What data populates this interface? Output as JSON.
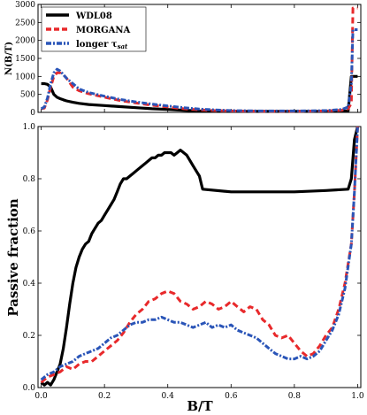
{
  "chart_data": [
    {
      "type": "line",
      "panel": "top",
      "ylabel": "N(B/T)",
      "xlabel": "",
      "xlim": [
        -0.01,
        1.01
      ],
      "ylim": [
        0,
        3000
      ],
      "yticks": [
        0,
        500,
        1000,
        1500,
        2000,
        2500,
        3000
      ],
      "ytick_labels": [
        "0",
        "500",
        "1000",
        "1500",
        "2000",
        "2500",
        "3000"
      ],
      "legend": {
        "placement": "top-left"
      },
      "series": [
        {
          "name": "WDL08",
          "color": "#000000",
          "style": "solid",
          "x": [
            0.0,
            0.01,
            0.02,
            0.03,
            0.04,
            0.05,
            0.06,
            0.07,
            0.08,
            0.1,
            0.12,
            0.15,
            0.2,
            0.25,
            0.3,
            0.35,
            0.4,
            0.45,
            0.5,
            0.6,
            0.7,
            0.8,
            0.9,
            0.97,
            0.98,
            0.99,
            1.0
          ],
          "y": [
            800,
            800,
            780,
            700,
            500,
            420,
            380,
            350,
            320,
            280,
            250,
            220,
            190,
            160,
            130,
            100,
            80,
            60,
            40,
            30,
            30,
            30,
            30,
            40,
            1000,
            1000,
            1000
          ]
        },
        {
          "name": "MORGANA",
          "color": "#e8292b",
          "style": "dashed",
          "x": [
            0.0,
            0.01,
            0.02,
            0.03,
            0.04,
            0.05,
            0.06,
            0.07,
            0.08,
            0.1,
            0.12,
            0.15,
            0.2,
            0.25,
            0.3,
            0.35,
            0.4,
            0.45,
            0.5,
            0.55,
            0.6,
            0.7,
            0.8,
            0.9,
            0.95,
            0.97,
            0.98,
            0.985,
            0.99,
            1.0
          ],
          "y": [
            100,
            120,
            350,
            700,
            1000,
            1100,
            1100,
            1050,
            950,
            700,
            600,
            520,
            420,
            330,
            260,
            200,
            150,
            100,
            70,
            50,
            40,
            30,
            30,
            40,
            60,
            100,
            250,
            2900,
            2900,
            2900
          ]
        },
        {
          "name": "longer τsat",
          "color": "#2a55b8",
          "style": "dashdot",
          "x": [
            0.0,
            0.01,
            0.02,
            0.03,
            0.04,
            0.05,
            0.06,
            0.07,
            0.08,
            0.1,
            0.12,
            0.15,
            0.2,
            0.25,
            0.3,
            0.35,
            0.4,
            0.45,
            0.5,
            0.55,
            0.6,
            0.7,
            0.8,
            0.9,
            0.95,
            0.97,
            0.98,
            0.985,
            0.99,
            1.0
          ],
          "y": [
            100,
            150,
            400,
            800,
            1100,
            1200,
            1150,
            1050,
            950,
            800,
            650,
            550,
            450,
            360,
            290,
            230,
            180,
            130,
            90,
            70,
            50,
            40,
            40,
            50,
            80,
            150,
            800,
            2300,
            2300,
            2300
          ]
        }
      ]
    },
    {
      "type": "line",
      "panel": "bottom",
      "xlabel": "B/T",
      "ylabel": "Passive fraction",
      "xlim": [
        -0.01,
        1.01
      ],
      "ylim": [
        0,
        1.0
      ],
      "xticks": [
        0.0,
        0.2,
        0.4,
        0.6,
        0.8,
        1.0
      ],
      "xtick_labels": [
        "0.0",
        "0.2",
        "0.4",
        "0.6",
        "0.8",
        "1.0"
      ],
      "yticks": [
        0.0,
        0.2,
        0.4,
        0.6,
        0.8,
        1.0
      ],
      "ytick_labels": [
        "0.0",
        "0.2",
        "0.4",
        "0.6",
        "0.8",
        "1.0"
      ],
      "series": [
        {
          "name": "WDL08",
          "color": "#000000",
          "style": "solid",
          "x": [
            0.0,
            0.01,
            0.02,
            0.03,
            0.04,
            0.05,
            0.06,
            0.07,
            0.08,
            0.09,
            0.1,
            0.11,
            0.12,
            0.13,
            0.14,
            0.15,
            0.16,
            0.17,
            0.18,
            0.19,
            0.2,
            0.21,
            0.22,
            0.23,
            0.24,
            0.25,
            0.26,
            0.27,
            0.28,
            0.29,
            0.3,
            0.31,
            0.32,
            0.33,
            0.34,
            0.35,
            0.36,
            0.37,
            0.38,
            0.39,
            0.4,
            0.41,
            0.42,
            0.43,
            0.44,
            0.45,
            0.46,
            0.47,
            0.48,
            0.49,
            0.5,
            0.51,
            0.6,
            0.7,
            0.8,
            0.9,
            0.97,
            0.98,
            0.99,
            1.0
          ],
          "y": [
            0.02,
            0.01,
            0.02,
            0.01,
            0.03,
            0.06,
            0.09,
            0.15,
            0.23,
            0.32,
            0.4,
            0.46,
            0.5,
            0.53,
            0.55,
            0.56,
            0.59,
            0.61,
            0.63,
            0.64,
            0.66,
            0.68,
            0.7,
            0.72,
            0.75,
            0.78,
            0.8,
            0.8,
            0.81,
            0.82,
            0.83,
            0.84,
            0.85,
            0.86,
            0.87,
            0.88,
            0.88,
            0.89,
            0.89,
            0.9,
            0.9,
            0.9,
            0.89,
            0.9,
            0.91,
            0.9,
            0.89,
            0.87,
            0.85,
            0.83,
            0.81,
            0.76,
            0.75,
            0.75,
            0.75,
            0.755,
            0.76,
            0.8,
            0.95,
            1.0
          ]
        },
        {
          "name": "MORGANA",
          "color": "#e8292b",
          "style": "dashed",
          "x": [
            0.0,
            0.02,
            0.04,
            0.06,
            0.08,
            0.1,
            0.12,
            0.14,
            0.16,
            0.18,
            0.2,
            0.22,
            0.24,
            0.26,
            0.28,
            0.3,
            0.32,
            0.34,
            0.36,
            0.38,
            0.4,
            0.42,
            0.44,
            0.46,
            0.48,
            0.5,
            0.52,
            0.54,
            0.56,
            0.58,
            0.6,
            0.62,
            0.64,
            0.66,
            0.68,
            0.7,
            0.72,
            0.74,
            0.76,
            0.78,
            0.8,
            0.82,
            0.84,
            0.86,
            0.88,
            0.9,
            0.92,
            0.94,
            0.96,
            0.98,
            0.99,
            1.0
          ],
          "y": [
            0.02,
            0.04,
            0.05,
            0.06,
            0.08,
            0.07,
            0.09,
            0.1,
            0.1,
            0.12,
            0.14,
            0.16,
            0.18,
            0.21,
            0.25,
            0.28,
            0.3,
            0.33,
            0.34,
            0.36,
            0.37,
            0.36,
            0.33,
            0.32,
            0.3,
            0.31,
            0.33,
            0.32,
            0.3,
            0.31,
            0.33,
            0.31,
            0.29,
            0.31,
            0.3,
            0.26,
            0.24,
            0.2,
            0.19,
            0.2,
            0.17,
            0.14,
            0.12,
            0.13,
            0.16,
            0.2,
            0.23,
            0.3,
            0.4,
            0.55,
            0.75,
            1.0
          ]
        },
        {
          "name": "longer τsat",
          "color": "#2a55b8",
          "style": "dashdot",
          "x": [
            0.0,
            0.02,
            0.04,
            0.06,
            0.08,
            0.1,
            0.12,
            0.14,
            0.16,
            0.18,
            0.2,
            0.22,
            0.24,
            0.26,
            0.28,
            0.3,
            0.32,
            0.34,
            0.36,
            0.38,
            0.4,
            0.42,
            0.44,
            0.46,
            0.48,
            0.5,
            0.52,
            0.54,
            0.56,
            0.58,
            0.6,
            0.62,
            0.64,
            0.66,
            0.68,
            0.7,
            0.72,
            0.74,
            0.76,
            0.78,
            0.8,
            0.82,
            0.84,
            0.86,
            0.88,
            0.9,
            0.92,
            0.94,
            0.96,
            0.98,
            0.99,
            1.0
          ],
          "y": [
            0.03,
            0.05,
            0.06,
            0.08,
            0.09,
            0.1,
            0.12,
            0.13,
            0.14,
            0.15,
            0.17,
            0.19,
            0.2,
            0.22,
            0.24,
            0.25,
            0.25,
            0.26,
            0.26,
            0.27,
            0.26,
            0.25,
            0.25,
            0.24,
            0.23,
            0.24,
            0.25,
            0.23,
            0.24,
            0.23,
            0.24,
            0.22,
            0.21,
            0.2,
            0.19,
            0.17,
            0.15,
            0.13,
            0.12,
            0.11,
            0.11,
            0.12,
            0.11,
            0.12,
            0.14,
            0.18,
            0.22,
            0.28,
            0.38,
            0.55,
            0.75,
            1.0
          ]
        }
      ]
    }
  ]
}
